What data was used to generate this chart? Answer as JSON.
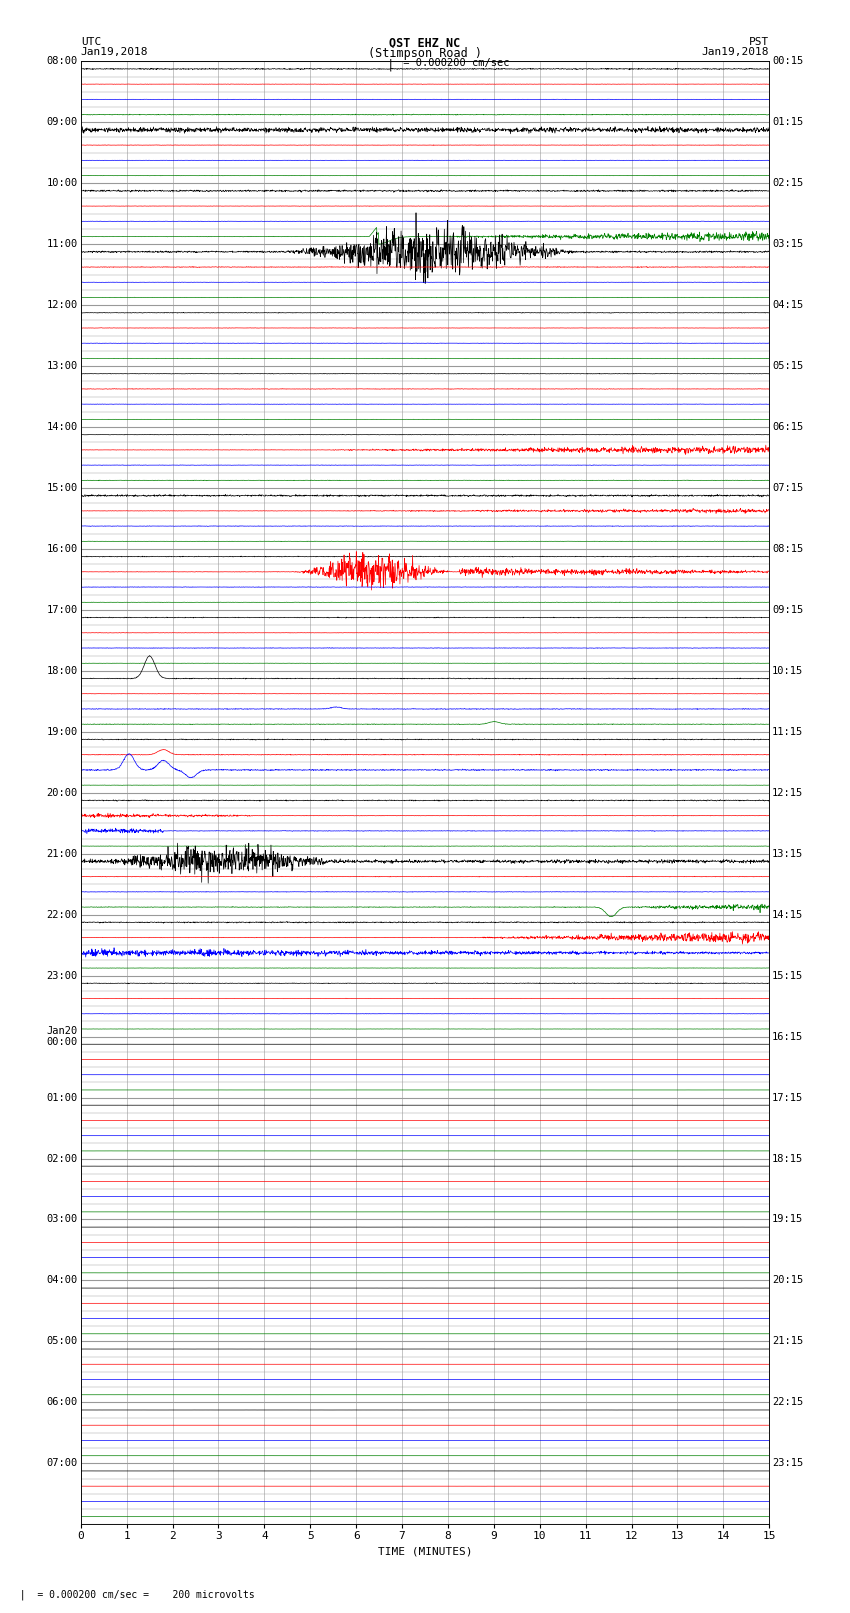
{
  "title_line1": "OST EHZ NC",
  "title_line2": "(Stimpson Road )",
  "scale_text": "= 0.000200 cm/sec",
  "bottom_scale_text": "= 0.000200 cm/sec =    200 microvolts",
  "left_label": "UTC",
  "left_date": "Jan19,2018",
  "right_label": "PST",
  "right_date": "Jan19,2018",
  "xlabel": "TIME (MINUTES)",
  "xlim": [
    0,
    15
  ],
  "xticks": [
    0,
    1,
    2,
    3,
    4,
    5,
    6,
    7,
    8,
    9,
    10,
    11,
    12,
    13,
    14,
    15
  ],
  "fig_width": 8.5,
  "fig_height": 16.13,
  "dpi": 100,
  "utc_labels": [
    "08:00",
    "09:00",
    "10:00",
    "11:00",
    "12:00",
    "13:00",
    "14:00",
    "15:00",
    "16:00",
    "17:00",
    "18:00",
    "19:00",
    "20:00",
    "21:00",
    "22:00",
    "23:00",
    "Jan20\n00:00",
    "01:00",
    "02:00",
    "03:00",
    "04:00",
    "05:00",
    "06:00",
    "07:00"
  ],
  "pst_labels": [
    "00:15",
    "01:15",
    "02:15",
    "03:15",
    "04:15",
    "05:15",
    "06:15",
    "07:15",
    "08:15",
    "09:15",
    "10:15",
    "11:15",
    "12:15",
    "13:15",
    "14:15",
    "15:15",
    "16:15",
    "17:15",
    "18:15",
    "19:15",
    "20:15",
    "21:15",
    "22:15",
    "23:15"
  ],
  "trace_colors": [
    "black",
    "red",
    "blue",
    "green"
  ],
  "bg_color": "white",
  "grid_color": "#999999",
  "num_hours": 24,
  "traces_per_hour": 4,
  "active_hours": 16
}
